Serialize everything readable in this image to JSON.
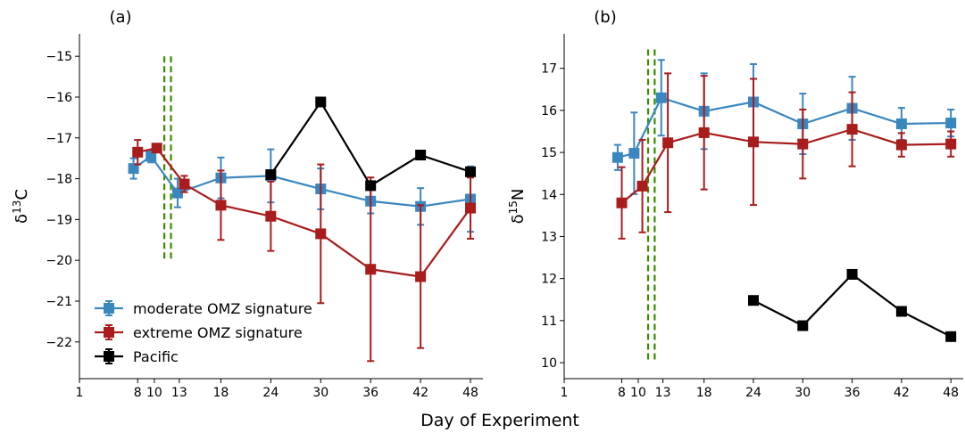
{
  "xlabel": "Day of Experiment",
  "colors": {
    "moderate": "#3a87c0",
    "extreme": "#a81c1c",
    "pacific": "#000000",
    "marker": "#3a8a00"
  },
  "chart_data": [
    {
      "type": "line",
      "title": "(a)",
      "ylabel_main": "δ",
      "ylabel_sup": "13",
      "ylabel_end": "C",
      "x_ticks": [
        1,
        8,
        10,
        13,
        18,
        24,
        30,
        36,
        42,
        48
      ],
      "x_tick_labels": [
        "1",
        "8",
        "10",
        "13",
        "18",
        "24",
        "30",
        "36",
        "42",
        "48"
      ],
      "y_ticks": [
        -15,
        -16,
        -17,
        -18,
        -19,
        -20,
        -21,
        -22
      ],
      "y_tick_labels": [
        "−15",
        "−16",
        "−17",
        "−18",
        "−19",
        "−20",
        "−21",
        "−22"
      ],
      "xlim": [
        1,
        49.5
      ],
      "ylim": [
        -22.9,
        -14.45
      ],
      "vlines": {
        "x": [
          11.2,
          12
        ],
        "y": [
          -15,
          -20
        ]
      },
      "legend": {
        "position": "lower-left",
        "entries": [
          "moderate OMZ signature",
          "extreme OMZ signature",
          "Pacific"
        ]
      },
      "series": [
        {
          "name": "moderate OMZ signature",
          "color_key": "moderate",
          "x": [
            7.5,
            9.6,
            12.8,
            18,
            24,
            30,
            36,
            42,
            48
          ],
          "y": [
            -17.75,
            -17.45,
            -18.35,
            -17.98,
            -17.93,
            -18.25,
            -18.55,
            -18.68,
            -18.5
          ],
          "err": [
            0.25,
            0.15,
            0.35,
            0.5,
            0.65,
            0.5,
            0.3,
            0.45,
            0.8
          ]
        },
        {
          "name": "extreme OMZ signature",
          "color_key": "extreme",
          "x": [
            8,
            10.3,
            13.6,
            18,
            24,
            30,
            36,
            42,
            48
          ],
          "y": [
            -17.35,
            -17.25,
            -18.13,
            -18.65,
            -18.92,
            -19.35,
            -20.22,
            -20.4,
            -18.72
          ],
          "err": [
            0.3,
            0.1,
            0.2,
            0.85,
            0.85,
            1.7,
            2.25,
            1.75,
            0.75
          ]
        },
        {
          "name": "Pacific",
          "color_key": "pacific",
          "x": [
            24,
            30,
            36,
            42,
            48
          ],
          "y": [
            -17.9,
            -16.12,
            -18.17,
            -17.42,
            -17.83
          ],
          "err": [
            0,
            0,
            0,
            0,
            0
          ]
        }
      ]
    },
    {
      "type": "line",
      "title": "(b)",
      "ylabel_main": "δ",
      "ylabel_sup": "15",
      "ylabel_end": "N",
      "x_ticks": [
        1,
        8,
        10,
        13,
        18,
        24,
        30,
        36,
        42,
        48
      ],
      "x_tick_labels": [
        "1",
        "8",
        "10",
        "13",
        "18",
        "24",
        "30",
        "36",
        "42",
        "48"
      ],
      "y_ticks": [
        10,
        11,
        12,
        13,
        14,
        15,
        16,
        17
      ],
      "y_tick_labels": [
        "10",
        "11",
        "12",
        "13",
        "14",
        "15",
        "16",
        "17"
      ],
      "xlim": [
        1,
        49.5
      ],
      "ylim": [
        9.62,
        17.82
      ],
      "vlines": {
        "x": [
          11.2,
          12
        ],
        "y": [
          17.45,
          10
        ]
      },
      "series": [
        {
          "name": "moderate OMZ signature",
          "color_key": "moderate",
          "x": [
            7.5,
            9.5,
            12.8,
            18,
            24,
            30,
            36,
            42,
            48
          ],
          "y": [
            14.88,
            14.98,
            16.3,
            15.98,
            16.2,
            15.68,
            16.05,
            15.68,
            15.7
          ],
          "err": [
            0.3,
            0.97,
            0.9,
            0.9,
            0.9,
            0.72,
            0.75,
            0.38,
            0.32
          ]
        },
        {
          "name": "extreme OMZ signature",
          "color_key": "extreme",
          "x": [
            8,
            10.5,
            13.6,
            18,
            24,
            30,
            36,
            42,
            48
          ],
          "y": [
            13.8,
            14.2,
            15.23,
            15.47,
            15.25,
            15.2,
            15.55,
            15.18,
            15.2
          ],
          "err": [
            0.85,
            1.1,
            1.65,
            1.35,
            1.5,
            0.82,
            0.88,
            0.28,
            0.3
          ]
        },
        {
          "name": "Pacific",
          "color_key": "pacific",
          "x": [
            24,
            30,
            36,
            42,
            48
          ],
          "y": [
            11.48,
            10.88,
            12.1,
            11.22,
            10.62
          ],
          "err": [
            0,
            0,
            0,
            0,
            0
          ]
        }
      ]
    }
  ]
}
